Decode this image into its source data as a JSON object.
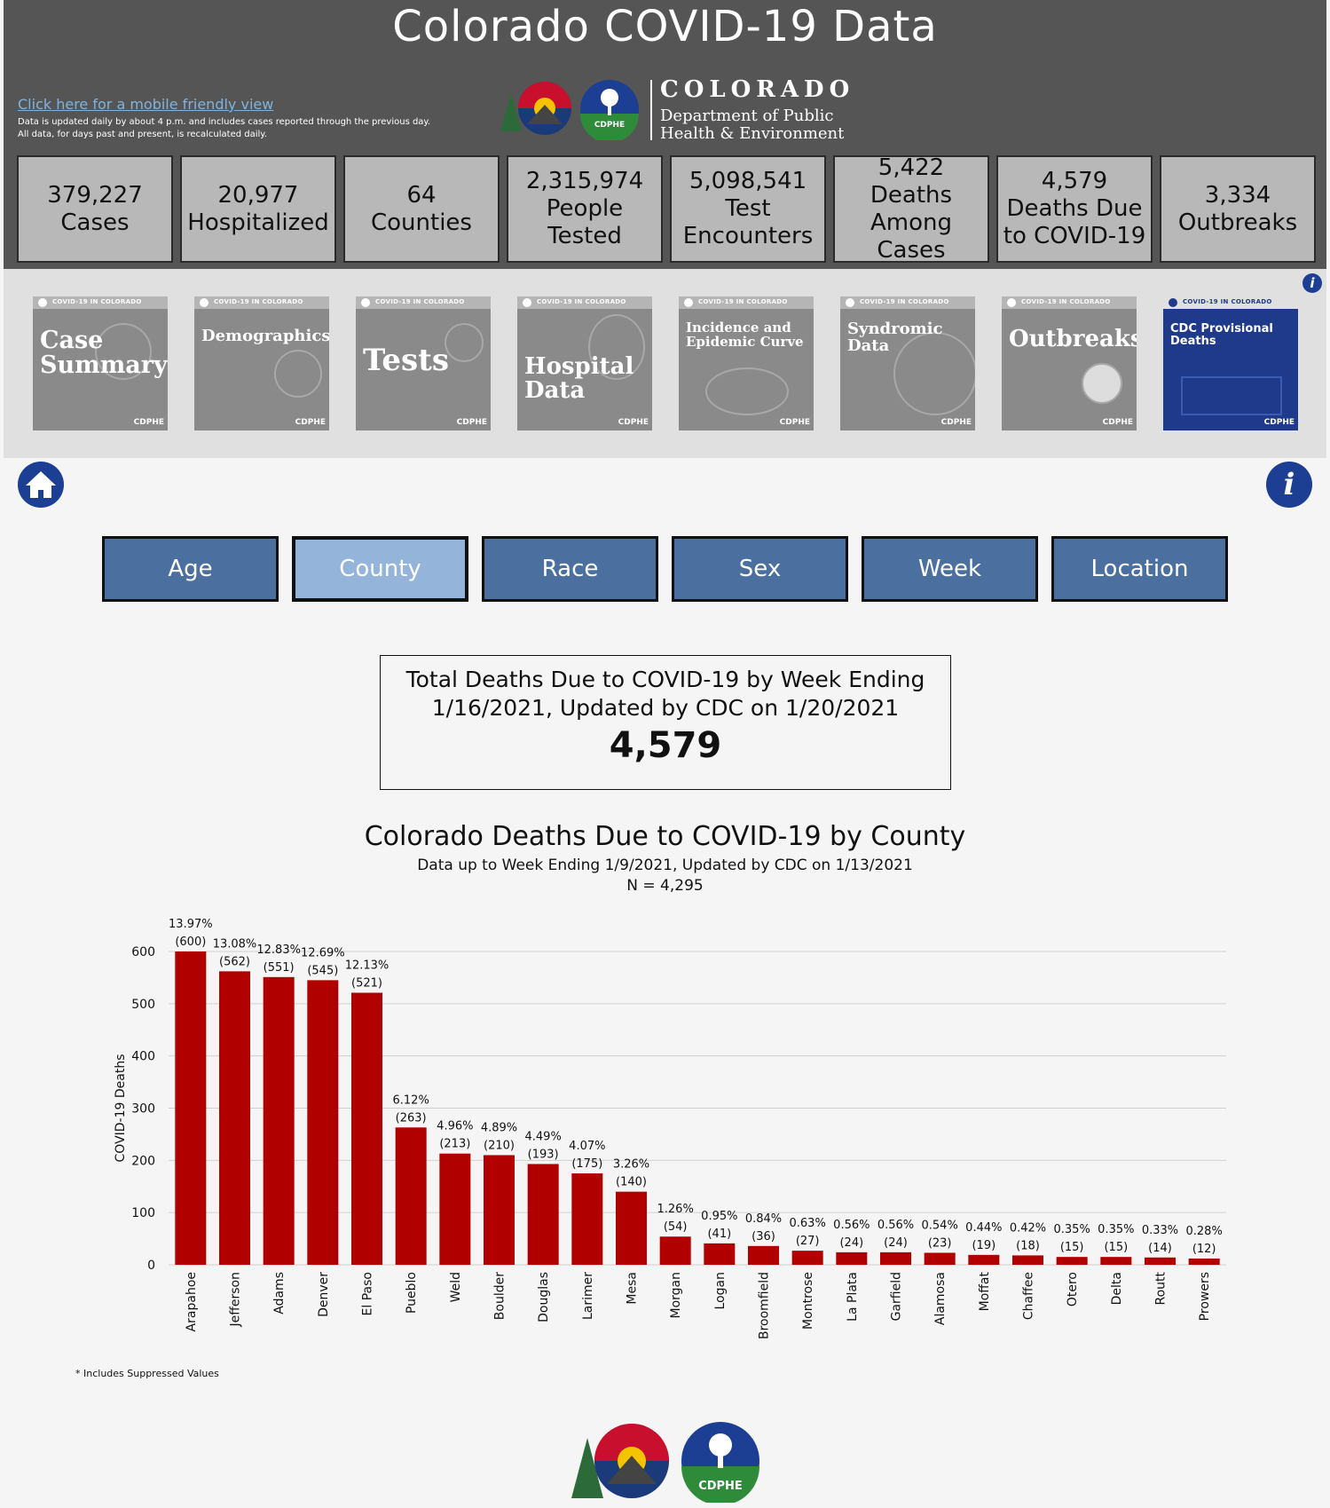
{
  "header": {
    "title": "Colorado COVID-19 Data",
    "mobile_link": "Click here for a mobile friendly view",
    "note_line1": "Data is updated daily by about 4 p.m. and includes cases reported through the previous day.",
    "note_line2": "All data, for days past and present, is recalculated daily.",
    "dept_name": "COLORADO",
    "dept_line1": "Department of Public",
    "dept_line2": "Health & Environment",
    "cdphe_badge": "CDPHE"
  },
  "stats": [
    {
      "lines": [
        "379,227",
        "Cases"
      ]
    },
    {
      "lines": [
        "20,977",
        "Hospitalized"
      ]
    },
    {
      "lines": [
        "64",
        "Counties"
      ]
    },
    {
      "lines": [
        "2,315,974",
        "People",
        "Tested"
      ]
    },
    {
      "lines": [
        "5,098,541",
        "Test",
        "Encounters"
      ]
    },
    {
      "lines": [
        "5,422",
        "Deaths",
        "Among Cases"
      ]
    },
    {
      "lines": [
        "4,579",
        "Deaths Due",
        "to COVID-19"
      ]
    },
    {
      "lines": [
        "3,334",
        "Outbreaks"
      ]
    }
  ],
  "tiles": {
    "header_text": "COVID-19 IN COLORADO",
    "footer_text": "CDPHE",
    "items": [
      {
        "label": "Case Summary",
        "icon": "virus-icon"
      },
      {
        "label": "Demographics",
        "icon": "people-icon"
      },
      {
        "label": "Tests",
        "icon": "microscope-icon"
      },
      {
        "label": "Hospital Data",
        "icon": "thermometer-icon"
      },
      {
        "label": "Incidence and Epidemic Curve",
        "icon": "crowd-icon"
      },
      {
        "label": "Syndromic Data",
        "icon": "target-icon"
      },
      {
        "label": "Outbreaks",
        "icon": "globe-icon"
      },
      {
        "label": "CDC Provisional Deaths",
        "icon": "map-icon"
      }
    ]
  },
  "tabs": [
    {
      "label": "Age",
      "active": false
    },
    {
      "label": "County",
      "active": true
    },
    {
      "label": "Race",
      "active": false
    },
    {
      "label": "Sex",
      "active": false
    },
    {
      "label": "Week",
      "active": false
    },
    {
      "label": "Location",
      "active": false
    }
  ],
  "total": {
    "line1": "Total Deaths Due to COVID-19 by Week Ending",
    "line2": "1/16/2021, Updated by CDC on 1/20/2021",
    "value": "4,579"
  },
  "chart_title": "Colorado Deaths Due to COVID-19 by County",
  "chart_subtitle": "Data up to Week Ending 1/9/2021, Updated by CDC on 1/13/2021",
  "chart_n": "N = 4,295",
  "footnote": "* Includes Suppressed Values",
  "colors": {
    "header_bg": "#555555",
    "bar": "#b00000",
    "tab": "#4b709f",
    "tab_active": "#94b4d9",
    "accent_blue": "#1c3f94"
  },
  "chart_data": {
    "type": "bar",
    "title": "Colorado Deaths Due to COVID-19 by County",
    "subtitle": "Data up to Week Ending 1/9/2021, Updated by CDC on 1/13/2021",
    "ylabel": "COVID-19 Deaths",
    "ylim": [
      0,
      600
    ],
    "yticks": [
      0,
      100,
      200,
      300,
      400,
      500,
      600
    ],
    "grid": true,
    "categories": [
      "Arapahoe",
      "Jefferson",
      "Adams",
      "Denver",
      "El Paso",
      "Pueblo",
      "Weld",
      "Boulder",
      "Douglas",
      "Larimer",
      "Mesa",
      "Morgan",
      "Logan",
      "Broomfield",
      "Montrose",
      "La Plata",
      "Garfield",
      "Alamosa",
      "Moffat",
      "Chaffee",
      "Otero",
      "Delta",
      "Routt",
      "Prowers"
    ],
    "values": [
      600,
      562,
      551,
      545,
      521,
      263,
      213,
      210,
      193,
      175,
      140,
      54,
      41,
      36,
      27,
      24,
      24,
      23,
      19,
      18,
      15,
      15,
      14,
      12
    ],
    "percent_labels": [
      "13.97%",
      "13.08%",
      "12.83%",
      "12.69%",
      "12.13%",
      "6.12%",
      "4.96%",
      "4.89%",
      "4.49%",
      "4.07%",
      "3.26%",
      "1.26%",
      "0.95%",
      "0.84%",
      "0.63%",
      "0.56%",
      "0.56%",
      "0.54%",
      "0.44%",
      "0.42%",
      "0.35%",
      "0.35%",
      "0.33%",
      "0.28%"
    ],
    "count_labels": [
      "(600)",
      "(562)",
      "(551)",
      "(545)",
      "(521)",
      "(263)",
      "(213)",
      "(210)",
      "(193)",
      "(175)",
      "(140)",
      "(54)",
      "(41)",
      "(36)",
      "(27)",
      "(24)",
      "(24)",
      "(23)",
      "(19)",
      "(18)",
      "(15)",
      "(15)",
      "(14)",
      "(12)"
    ]
  }
}
